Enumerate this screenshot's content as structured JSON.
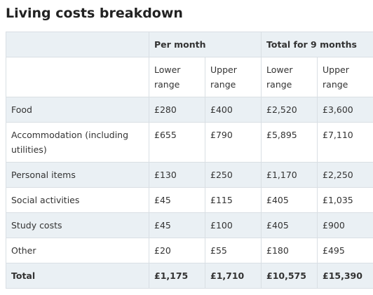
{
  "title": "Living costs breakdown",
  "table": {
    "group_headers": [
      "Per month",
      "Total for 9 months"
    ],
    "column_headers": [
      "Lower range",
      "Upper range",
      "Lower range",
      "Upper range"
    ],
    "rows": [
      [
        "Food",
        "£280",
        "£400",
        "£2,520",
        "£3,600"
      ],
      [
        "Accommodation (including utilities)",
        "£655",
        "£790",
        "£5,895",
        "£7,110"
      ],
      [
        "Personal items",
        "£130",
        "£250",
        "£1,170",
        "£2,250"
      ],
      [
        "Social activities",
        "£45",
        "£115",
        "£405",
        "£1,035"
      ],
      [
        "Study costs",
        "£45",
        "£100",
        "£405",
        "£900"
      ],
      [
        "Other",
        "£20",
        "£55",
        "£180",
        "£495"
      ],
      [
        "Total",
        "£1,175",
        "£1,710",
        "£10,575",
        "£15,390"
      ]
    ]
  }
}
